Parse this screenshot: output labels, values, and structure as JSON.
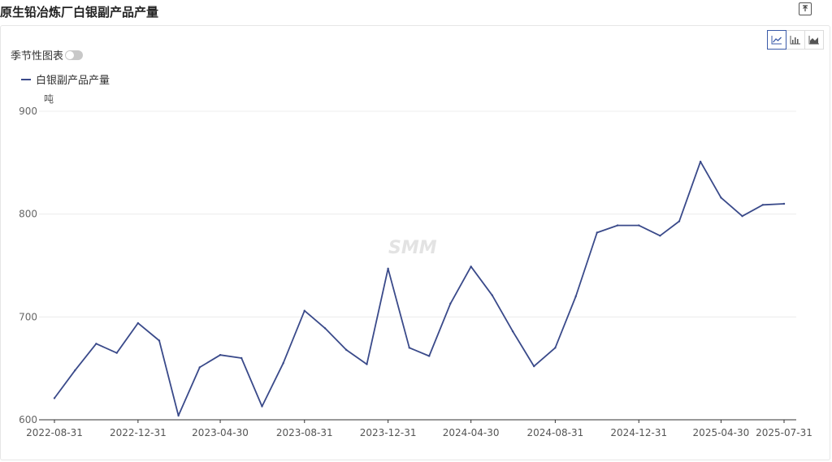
{
  "header": {
    "title": "原生铅冶炼厂白银副产品产量"
  },
  "controls": {
    "seasonal_label": "季节性图表",
    "seasonal_on": false,
    "views": [
      {
        "name": "line-view",
        "icon": "line-chart-icon",
        "active": true
      },
      {
        "name": "bar-view",
        "icon": "bar-chart-icon",
        "active": false
      },
      {
        "name": "area-view",
        "icon": "area-chart-icon",
        "active": false
      }
    ]
  },
  "watermark": "SMM",
  "chart_data": {
    "type": "line",
    "title": "原生铅冶炼厂白银副产品产量",
    "ylabel": "吨",
    "ylim": [
      600,
      900
    ],
    "yticks": [
      600,
      700,
      800,
      900
    ],
    "grid": true,
    "legend_position": "top-left",
    "color": "#3a4a8a",
    "x_tick_labels": [
      "2022-08-31",
      "2022-12-31",
      "2023-04-30",
      "2023-08-31",
      "2023-12-31",
      "2024-04-30",
      "2024-08-31",
      "2024-12-31",
      "2025-04-30",
      "2025-07-31"
    ],
    "series": [
      {
        "name": "白银副产品产量",
        "x": [
          "2022-08-31",
          "2022-09-30",
          "2022-10-31",
          "2022-11-30",
          "2022-12-31",
          "2023-01-31",
          "2023-02-28",
          "2023-03-31",
          "2023-04-30",
          "2023-05-31",
          "2023-06-30",
          "2023-07-31",
          "2023-08-31",
          "2023-09-30",
          "2023-10-31",
          "2023-11-30",
          "2023-12-31",
          "2024-01-31",
          "2024-02-29",
          "2024-03-31",
          "2024-04-30",
          "2024-05-31",
          "2024-06-30",
          "2024-07-31",
          "2024-08-31",
          "2024-09-30",
          "2024-10-31",
          "2024-11-30",
          "2024-12-31",
          "2025-01-31",
          "2025-02-28",
          "2025-03-31",
          "2025-04-30",
          "2025-05-31",
          "2025-06-30",
          "2025-07-31"
        ],
        "values": [
          621,
          648,
          674,
          665,
          694,
          677,
          604,
          651,
          663,
          660,
          613,
          655,
          706,
          689,
          668,
          654,
          747,
          670,
          662,
          713,
          749,
          721,
          686,
          652,
          670,
          720,
          782,
          789,
          789,
          779,
          793,
          851,
          816,
          798,
          809,
          810
        ]
      }
    ]
  }
}
